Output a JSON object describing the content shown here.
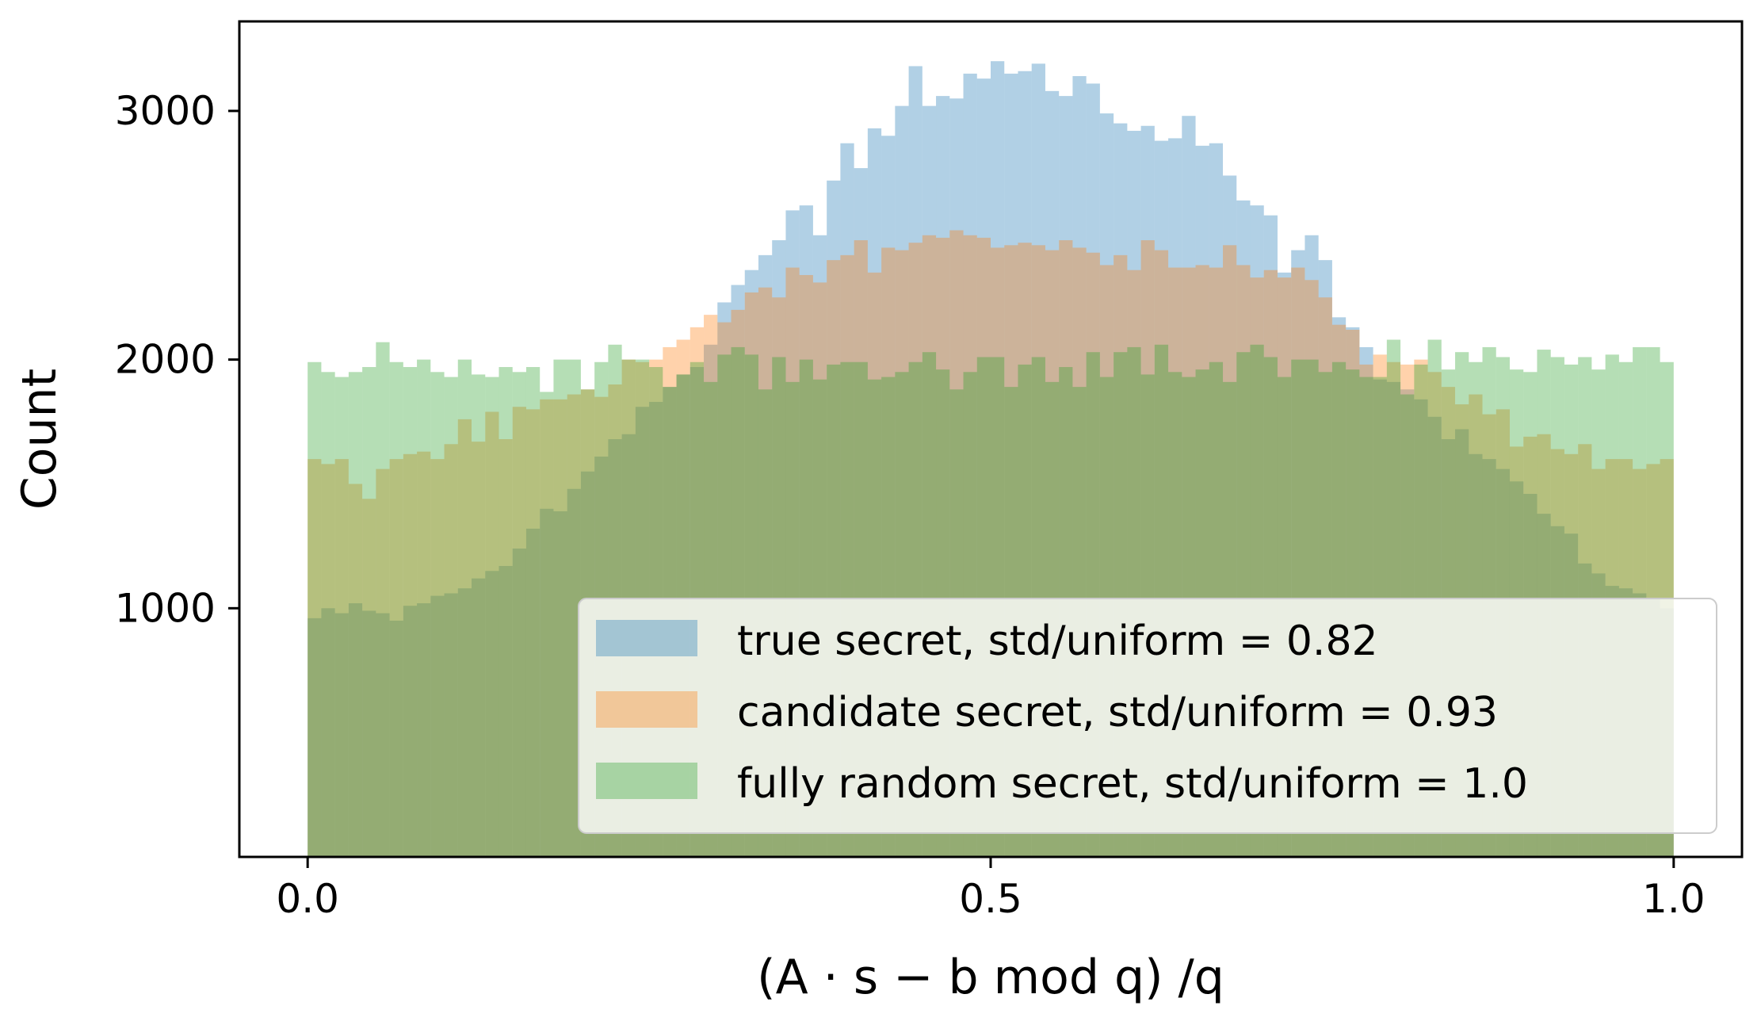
{
  "chart_data": {
    "type": "bar",
    "subtype": "histogram-overlay",
    "xlabel": "(A · s − b mod q) /q",
    "ylabel": "Count",
    "xlim": [
      -0.05,
      1.05
    ],
    "ylim": [
      0,
      3360
    ],
    "xticks": [
      0.0,
      0.5,
      1.0
    ],
    "xtick_labels": [
      "0.0",
      "0.5",
      "1.0"
    ],
    "yticks": [
      1000,
      2000,
      3000
    ],
    "ytick_labels": [
      "1000",
      "2000",
      "3000"
    ],
    "bin_range": [
      0.0,
      1.0
    ],
    "bin_count": 100,
    "alpha": 0.35,
    "grid": false,
    "legend_position": "lower-right",
    "series": [
      {
        "name": "true secret, std/uniform = 0.82",
        "color": "#1f77b4",
        "values": [
          960,
          1000,
          980,
          1020,
          990,
          980,
          950,
          1010,
          1020,
          1050,
          1060,
          1080,
          1120,
          1150,
          1170,
          1240,
          1320,
          1400,
          1390,
          1480,
          1550,
          1610,
          1680,
          1700,
          1810,
          1830,
          1890,
          1940,
          1970,
          2060,
          2230,
          2300,
          2360,
          2420,
          2480,
          2600,
          2620,
          2500,
          2720,
          2870,
          2770,
          2930,
          2900,
          3020,
          3180,
          3020,
          3060,
          3050,
          3150,
          3130,
          3200,
          3150,
          3160,
          3190,
          3080,
          3060,
          3140,
          3110,
          2990,
          2950,
          2920,
          2940,
          2880,
          2890,
          2980,
          2860,
          2870,
          2740,
          2640,
          2620,
          2580,
          2350,
          2440,
          2500,
          2400,
          2170,
          2130,
          2050,
          1920,
          1910,
          1880,
          1840,
          1770,
          1680,
          1720,
          1620,
          1600,
          1560,
          1510,
          1460,
          1380,
          1330,
          1300,
          1180,
          1140,
          1090,
          1080,
          1060,
          1040,
          1000
        ]
      },
      {
        "name": "candidate secret, std/uniform = 0.93",
        "color": "#ff7f0e",
        "values": [
          1600,
          1580,
          1600,
          1500,
          1440,
          1560,
          1600,
          1620,
          1630,
          1600,
          1660,
          1760,
          1670,
          1790,
          1680,
          1810,
          1800,
          1840,
          1840,
          1860,
          1880,
          1850,
          1900,
          2000,
          1990,
          2000,
          2050,
          2080,
          2130,
          2180,
          2150,
          2200,
          2270,
          2290,
          2250,
          2370,
          2340,
          2310,
          2400,
          2420,
          2480,
          2350,
          2450,
          2440,
          2470,
          2500,
          2490,
          2520,
          2500,
          2490,
          2450,
          2460,
          2470,
          2460,
          2440,
          2480,
          2450,
          2430,
          2380,
          2420,
          2360,
          2480,
          2440,
          2370,
          2370,
          2380,
          2370,
          2460,
          2380,
          2330,
          2360,
          2330,
          2370,
          2320,
          2250,
          2140,
          2120,
          1980,
          2020,
          1990,
          1980,
          2000,
          1950,
          1890,
          1820,
          1860,
          1780,
          1800,
          1650,
          1690,
          1700,
          1640,
          1620,
          1660,
          1560,
          1600,
          1600,
          1560,
          1580,
          1600
        ]
      },
      {
        "name": "fully random secret, std/uniform = 1.0",
        "color": "#2ca02c",
        "values": [
          1990,
          1950,
          1930,
          1950,
          1970,
          2070,
          1990,
          1970,
          2000,
          1950,
          1930,
          2000,
          1940,
          1930,
          1970,
          1950,
          1970,
          1870,
          2000,
          2000,
          1880,
          1990,
          2060,
          2000,
          2000,
          1970,
          1890,
          1940,
          1990,
          1910,
          2020,
          2050,
          2020,
          1880,
          2010,
          1910,
          2000,
          1920,
          1980,
          1990,
          1990,
          1920,
          1930,
          1950,
          1990,
          2030,
          1960,
          1880,
          1950,
          2010,
          2010,
          1890,
          1980,
          2010,
          1910,
          1970,
          1890,
          2030,
          1930,
          2030,
          2050,
          1940,
          2060,
          1950,
          1930,
          1960,
          1990,
          1910,
          2030,
          2060,
          2010,
          1930,
          2000,
          2000,
          1950,
          1990,
          1960,
          1930,
          1930,
          2080,
          1860,
          1980,
          2080,
          1960,
          2030,
          1990,
          2050,
          2010,
          1960,
          1950,
          2040,
          2010,
          1980,
          2010,
          1960,
          2020,
          1990,
          2050,
          2050,
          1990
        ]
      }
    ]
  }
}
